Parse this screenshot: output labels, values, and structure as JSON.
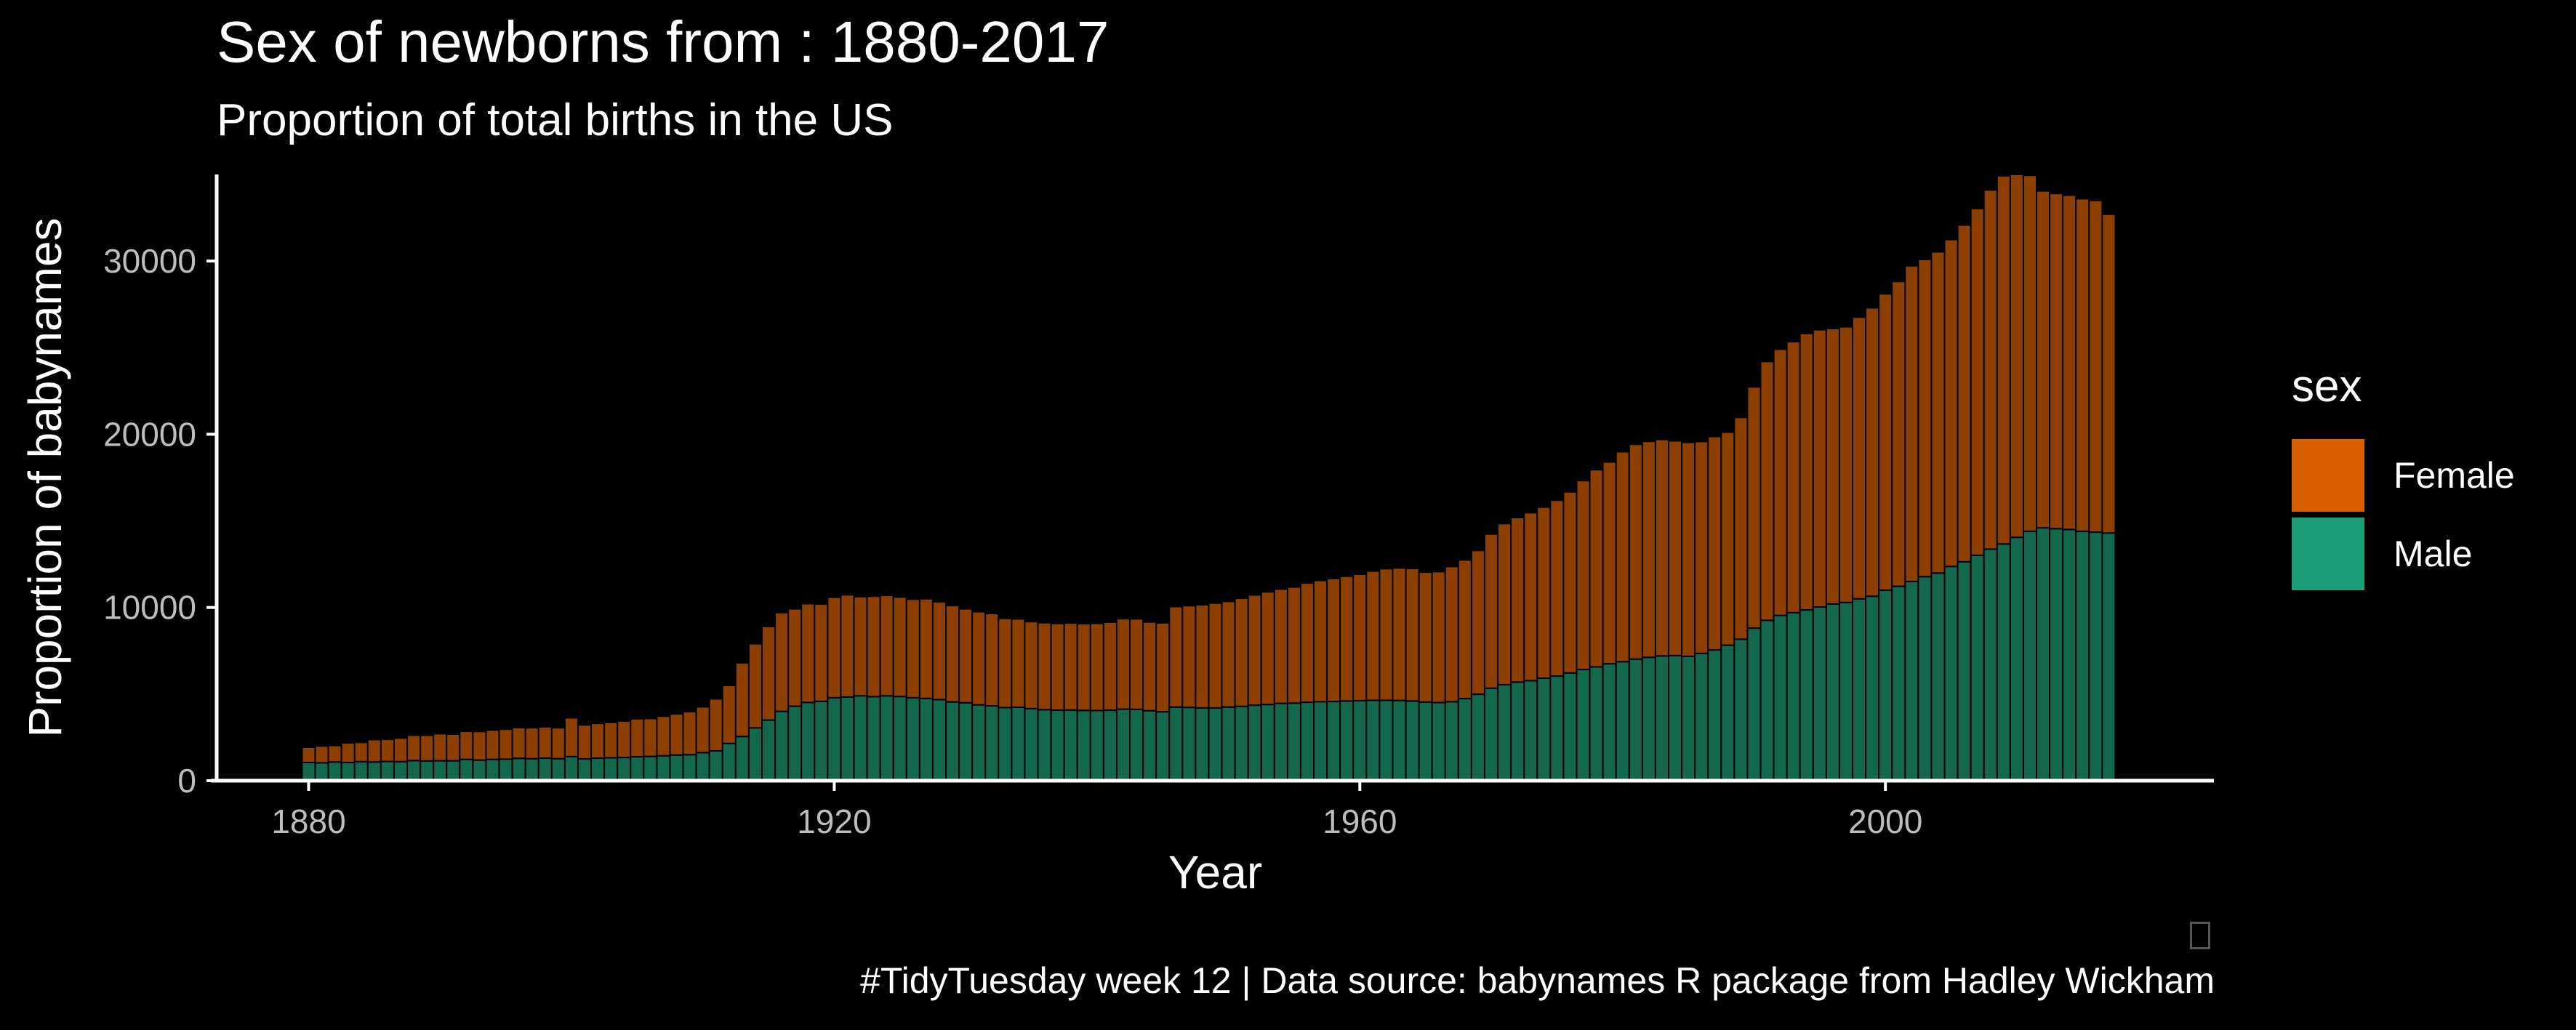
{
  "chart_data": {
    "type": "bar",
    "stacked": true,
    "title": "Sex of newborns from : 1880-2017",
    "subtitle": "Proportion of total births in the US",
    "xlabel": "Year",
    "ylabel": "Proportion of babynames",
    "xlim": [
      1873,
      2025
    ],
    "ylim": [
      0,
      35000
    ],
    "x_ticks": [
      1880,
      1920,
      1960,
      2000
    ],
    "y_ticks": [
      0,
      10000,
      20000,
      30000
    ],
    "grid": false,
    "legend": {
      "title": "sex",
      "position": "right"
    },
    "caption": "#TidyTuesday week 12 | Data source: babynames R package from Hadley Wickham",
    "colors": {
      "Female": "#d95f02",
      "Male": "#1b9e77",
      "background": "#000000"
    },
    "bar_alpha": 0.65,
    "x": [
      1880,
      1881,
      1882,
      1883,
      1884,
      1885,
      1886,
      1887,
      1888,
      1889,
      1890,
      1891,
      1892,
      1893,
      1894,
      1895,
      1896,
      1897,
      1898,
      1899,
      1900,
      1901,
      1902,
      1903,
      1904,
      1905,
      1906,
      1907,
      1908,
      1909,
      1910,
      1911,
      1912,
      1913,
      1914,
      1915,
      1916,
      1917,
      1918,
      1919,
      1920,
      1921,
      1922,
      1923,
      1924,
      1925,
      1926,
      1927,
      1928,
      1929,
      1930,
      1931,
      1932,
      1933,
      1934,
      1935,
      1936,
      1937,
      1938,
      1939,
      1940,
      1941,
      1942,
      1943,
      1944,
      1945,
      1946,
      1947,
      1948,
      1949,
      1950,
      1951,
      1952,
      1953,
      1954,
      1955,
      1956,
      1957,
      1958,
      1959,
      1960,
      1961,
      1962,
      1963,
      1964,
      1965,
      1966,
      1967,
      1968,
      1969,
      1970,
      1971,
      1972,
      1973,
      1974,
      1975,
      1976,
      1977,
      1978,
      1979,
      1980,
      1981,
      1982,
      1983,
      1984,
      1985,
      1986,
      1987,
      1988,
      1989,
      1990,
      1991,
      1992,
      1993,
      1994,
      1995,
      1996,
      1997,
      1998,
      1999,
      2000,
      2001,
      2002,
      2003,
      2004,
      2005,
      2006,
      2007,
      2008,
      2009,
      2010,
      2011,
      2012,
      2013,
      2014,
      2015,
      2016,
      2017
    ],
    "series": [
      {
        "name": "Male",
        "values": [
          1050,
          1030,
          1080,
          1050,
          1100,
          1080,
          1110,
          1100,
          1160,
          1140,
          1150,
          1150,
          1230,
          1190,
          1230,
          1240,
          1290,
          1270,
          1300,
          1270,
          1390,
          1260,
          1300,
          1320,
          1340,
          1380,
          1400,
          1440,
          1480,
          1500,
          1620,
          1720,
          2150,
          2550,
          3050,
          3500,
          4000,
          4300,
          4520,
          4580,
          4790,
          4830,
          4900,
          4850,
          4900,
          4860,
          4790,
          4750,
          4680,
          4550,
          4500,
          4380,
          4320,
          4220,
          4240,
          4160,
          4100,
          4070,
          4080,
          4060,
          4050,
          4070,
          4130,
          4120,
          4040,
          3980,
          4250,
          4230,
          4200,
          4200,
          4250,
          4290,
          4360,
          4400,
          4460,
          4480,
          4530,
          4560,
          4570,
          4600,
          4620,
          4640,
          4640,
          4630,
          4600,
          4540,
          4510,
          4560,
          4740,
          4990,
          5340,
          5540,
          5690,
          5770,
          5920,
          6040,
          6220,
          6420,
          6570,
          6750,
          6870,
          7020,
          7120,
          7200,
          7220,
          7180,
          7350,
          7550,
          7820,
          8170,
          8810,
          9260,
          9540,
          9700,
          9860,
          10030,
          10200,
          10290,
          10500,
          10650,
          11000,
          11220,
          11500,
          11780,
          11990,
          12370,
          12640,
          13010,
          13370,
          13670,
          14050,
          14400,
          14600,
          14550,
          14500,
          14400,
          14350,
          14300
        ]
      },
      {
        "name": "Female",
        "values": [
          880,
          970,
          950,
          1130,
          1110,
          1290,
          1280,
          1360,
          1460,
          1480,
          1560,
          1540,
          1620,
          1650,
          1690,
          1730,
          1770,
          1780,
          1810,
          1780,
          2240,
          1960,
          2010,
          2040,
          2100,
          2190,
          2190,
          2280,
          2370,
          2480,
          2640,
          3000,
          3350,
          4250,
          4850,
          5400,
          5700,
          5620,
          5700,
          5620,
          5800,
          5900,
          5720,
          5800,
          5800,
          5740,
          5690,
          5750,
          5640,
          5560,
          5420,
          5370,
          5330,
          5150,
          5100,
          5020,
          5020,
          5000,
          5020,
          5000,
          5030,
          5080,
          5220,
          5220,
          5120,
          5130,
          5800,
          5870,
          5950,
          6050,
          6100,
          6240,
          6360,
          6500,
          6600,
          6700,
          6880,
          7000,
          7100,
          7200,
          7300,
          7460,
          7600,
          7650,
          7650,
          7500,
          7560,
          7800,
          8000,
          8300,
          8900,
          9300,
          9500,
          9700,
          9870,
          10150,
          10450,
          10900,
          11380,
          11650,
          12120,
          12400,
          12470,
          12500,
          12400,
          12350,
          12230,
          12320,
          12300,
          12800,
          13920,
          14940,
          15370,
          15640,
          15960,
          16000,
          15900,
          15910,
          16260,
          16650,
          17100,
          17600,
          18220,
          18310,
          18540,
          18870,
          19440,
          20020,
          20730,
          21250,
          20950,
          20550,
          19450,
          19350,
          19300,
          19200,
          19150,
          18400
        ]
      }
    ]
  }
}
